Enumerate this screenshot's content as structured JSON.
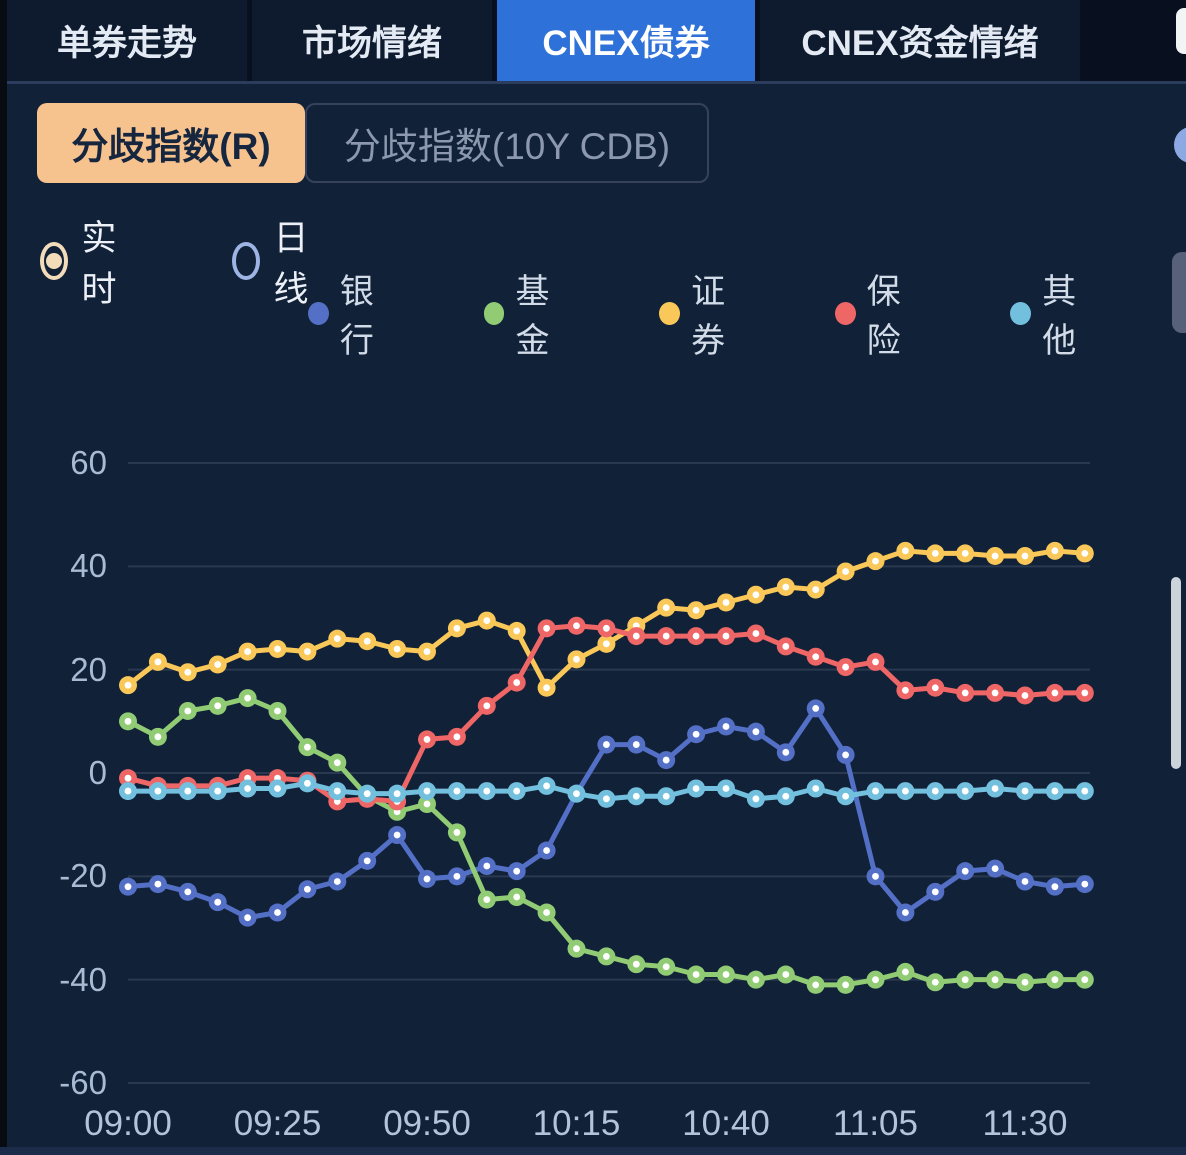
{
  "tabs": {
    "items": [
      {
        "label": "单券走势",
        "active": false
      },
      {
        "label": "市场情绪",
        "active": false
      },
      {
        "label": "CNEX债券",
        "active": true
      },
      {
        "label": "CNEX资金情绪",
        "active": false
      }
    ]
  },
  "toggle": {
    "options": [
      {
        "label": "分歧指数(R)",
        "active": true
      },
      {
        "label": "分歧指数(10Y CDB)",
        "active": false
      }
    ]
  },
  "radios": {
    "options": [
      {
        "label": "实时",
        "selected": true
      },
      {
        "label": "日线",
        "selected": false
      }
    ]
  },
  "colors": {
    "background": "#112138",
    "tab_active": "#2e72d9",
    "toggle_active": "#f6c28e",
    "grid_line": "#2b3950",
    "axis_text": "#a9bbd4"
  },
  "chart_data": {
    "type": "line",
    "title": "",
    "xlabel": "",
    "ylabel": "",
    "ylim": [
      -60,
      60
    ],
    "grid": true,
    "legend_position": "top",
    "y_ticks": [
      60,
      40,
      20,
      0,
      -20,
      -40,
      -60
    ],
    "x_tick_labels": [
      "09:00",
      "09:25",
      "09:50",
      "10:15",
      "10:40",
      "11:05",
      "11:30"
    ],
    "x": [
      "09:00",
      "09:05",
      "09:10",
      "09:15",
      "09:20",
      "09:25",
      "09:30",
      "09:35",
      "09:40",
      "09:45",
      "09:50",
      "09:55",
      "10:00",
      "10:05",
      "10:10",
      "10:15",
      "10:20",
      "10:25",
      "10:30",
      "10:35",
      "10:40",
      "10:45",
      "10:50",
      "10:55",
      "11:00",
      "11:05",
      "11:10",
      "11:15",
      "11:20",
      "11:25",
      "11:30",
      "11:35",
      "11:40"
    ],
    "series": [
      {
        "name": "银行",
        "color": "#5470c6",
        "values": [
          -22,
          -21.5,
          -23,
          -25,
          -28,
          -27,
          -22.5,
          -21,
          -17,
          -12,
          -20.5,
          -20,
          -18,
          -19,
          -15,
          -4,
          5.5,
          5.5,
          2.5,
          7.5,
          9,
          8,
          4,
          12.5,
          3.5,
          -20,
          -27,
          -23,
          -19,
          -18.5,
          -21,
          -22,
          -21.5
        ]
      },
      {
        "name": "基金",
        "color": "#91cc75",
        "values": [
          10,
          7,
          12,
          13,
          14.5,
          12,
          5,
          2,
          -4.5,
          -7.5,
          -6,
          -11.5,
          -24.5,
          -24,
          -27,
          -34,
          -35.5,
          -37,
          -37.5,
          -39,
          -39,
          -40,
          -39,
          -41,
          -41,
          -40,
          -38.5,
          -40.5,
          -40,
          -40,
          -40.5,
          -40,
          -40
        ]
      },
      {
        "name": "证券",
        "color": "#fac858",
        "values": [
          17,
          21.5,
          19.5,
          21,
          23.5,
          24,
          23.5,
          26,
          25.5,
          24,
          23.5,
          28,
          29.5,
          27.5,
          16.5,
          22,
          25,
          28.5,
          32,
          31.5,
          33,
          34.5,
          36,
          35.5,
          39,
          41,
          43,
          42.5,
          42.5,
          42,
          42,
          43,
          42.5
        ]
      },
      {
        "name": "保险",
        "color": "#ee6666",
        "values": [
          -1,
          -2.5,
          -2.5,
          -2.5,
          -1,
          -1,
          -1.5,
          -5.5,
          -5,
          -5.5,
          6.5,
          7,
          13,
          17.5,
          28,
          28.5,
          28,
          26.5,
          26.5,
          26.5,
          26.5,
          27,
          24.5,
          22.5,
          20.5,
          21.5,
          16,
          16.5,
          15.5,
          15.5,
          15,
          15.5,
          15.5
        ]
      },
      {
        "name": "其他",
        "color": "#73c0de",
        "values": [
          -3.5,
          -3.5,
          -3.5,
          -3.5,
          -3,
          -3,
          -2,
          -3.5,
          -4,
          -4,
          -3.5,
          -3.5,
          -3.5,
          -3.5,
          -2.5,
          -4,
          -5,
          -4.5,
          -4.5,
          -3,
          -3,
          -5,
          -4.5,
          -3,
          -4.5,
          -3.5,
          -3.5,
          -3.5,
          -3.5,
          -3,
          -3.5,
          -3.5,
          -3.5
        ]
      }
    ]
  }
}
